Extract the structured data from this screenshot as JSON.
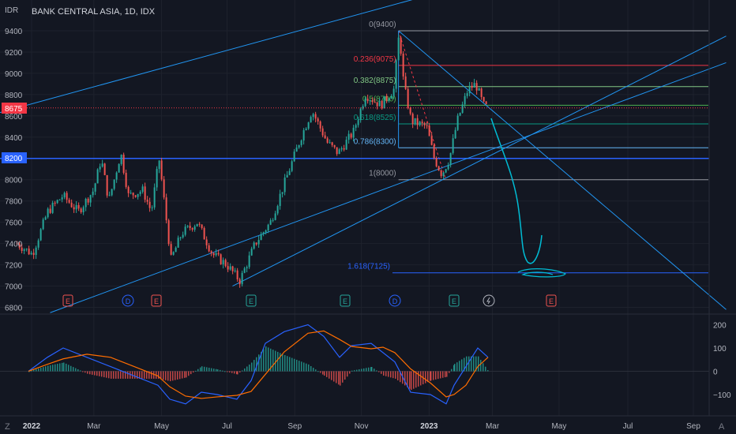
{
  "header": {
    "title": "BANK CENTRAL ASIA, 1D, IDX",
    "currency": "IDR"
  },
  "price_axis": {
    "ticks": [
      "9400",
      "9200",
      "9000",
      "8800",
      "8600",
      "8400",
      "8200",
      "8000",
      "7800",
      "7600",
      "7400",
      "7200",
      "7000",
      "6800"
    ],
    "current_price": "8675",
    "marked_price": "8200"
  },
  "macd_axis": {
    "ticks": [
      "200",
      "100",
      "0",
      "−100"
    ]
  },
  "time_axis": {
    "ticks": [
      "2022",
      "Mar",
      "May",
      "Jul",
      "Sep",
      "Nov",
      "2023",
      "Mar",
      "May",
      "Jul",
      "Sep"
    ]
  },
  "fib_levels": [
    {
      "label": "0(9400)",
      "value": 9400,
      "color": "#9598a1"
    },
    {
      "label": "0.236(9075)",
      "value": 9075,
      "color": "#f23645"
    },
    {
      "label": "0.382(8875)",
      "value": 8875,
      "color": "#81c784"
    },
    {
      "label": "0.5(8700)",
      "value": 8700,
      "color": "#4caf50"
    },
    {
      "label": "0.618(8525)",
      "value": 8525,
      "color": "#089981"
    },
    {
      "label": "0.786(8300)",
      "value": 8300,
      "color": "#64b5f6"
    },
    {
      "label": "1(8000)",
      "value": 8000,
      "color": "#9598a1"
    },
    {
      "label": "1.618(7125)",
      "value": 7125,
      "color": "#2962ff"
    }
  ],
  "event_markers": [
    {
      "letter": "E",
      "type": "earnings-negative"
    },
    {
      "letter": "D",
      "type": "dividend"
    },
    {
      "letter": "E",
      "type": "earnings-negative"
    },
    {
      "letter": "E",
      "type": "earnings-positive"
    },
    {
      "letter": "E",
      "type": "earnings-positive"
    },
    {
      "letter": "D",
      "type": "dividend"
    },
    {
      "letter": "E",
      "type": "earnings-positive"
    },
    {
      "letter": "",
      "type": "split-icon"
    },
    {
      "letter": "E",
      "type": "earnings-negative"
    }
  ],
  "footer": {
    "compare_icon": "Z",
    "auto_icon": "A"
  },
  "colors": {
    "bg": "#131722",
    "up": "#26a69a",
    "down": "#ef5350",
    "trend": "#2196f3",
    "macd": "#2962ff",
    "signal": "#ff6d00",
    "drawing": "#00bcd4"
  },
  "chart_data": {
    "type": "candlestick",
    "title": "BANK CENTRAL ASIA, 1D, IDX",
    "ylabel": "IDR",
    "ylim": [
      6800,
      9500
    ],
    "price_path": [
      [
        "2021-12-20",
        7400
      ],
      [
        "2022-01-03",
        7300
      ],
      [
        "2022-01-17",
        7700
      ],
      [
        "2022-01-31",
        7850
      ],
      [
        "2022-02-14",
        7700
      ],
      [
        "2022-02-28",
        7900
      ],
      [
        "2022-03-07",
        8200
      ],
      [
        "2022-03-14",
        7800
      ],
      [
        "2022-03-25",
        8250
      ],
      [
        "2022-04-01",
        7850
      ],
      [
        "2022-04-14",
        7900
      ],
      [
        "2022-04-22",
        7700
      ],
      [
        "2022-04-29",
        8200
      ],
      [
        "2022-05-10",
        7250
      ],
      [
        "2022-05-20",
        7500
      ],
      [
        "2022-06-03",
        7600
      ],
      [
        "2022-06-17",
        7300
      ],
      [
        "2022-06-30",
        7200
      ],
      [
        "2022-07-12",
        7050
      ],
      [
        "2022-07-26",
        7400
      ],
      [
        "2022-08-09",
        7600
      ],
      [
        "2022-08-23",
        8000
      ],
      [
        "2022-09-06",
        8400
      ],
      [
        "2022-09-16",
        8650
      ],
      [
        "2022-09-30",
        8350
      ],
      [
        "2022-10-10",
        8250
      ],
      [
        "2022-10-24",
        8450
      ],
      [
        "2022-11-04",
        8800
      ],
      [
        "2022-11-18",
        8700
      ],
      [
        "2022-11-30",
        8850
      ],
      [
        "2022-12-05",
        9400
      ],
      [
        "2022-12-09",
        8900
      ],
      [
        "2022-12-16",
        8550
      ],
      [
        "2022-12-30",
        8500
      ],
      [
        "2023-01-06",
        8200
      ],
      [
        "2023-01-13",
        8050
      ],
      [
        "2023-01-20",
        8200
      ],
      [
        "2023-01-27",
        8550
      ],
      [
        "2023-02-06",
        8850
      ],
      [
        "2023-02-13",
        8900
      ],
      [
        "2023-02-20",
        8700
      ],
      [
        "2023-02-24",
        8675
      ]
    ],
    "macd_ylim": [
      -180,
      220
    ],
    "trendlines": [
      {
        "from": [
          "2021-12-01",
          8620
        ],
        "to": [
          "2023-10-01",
          10500
        ]
      },
      {
        "from": [
          "2022-07-06",
          7000
        ],
        "to": [
          "2023-10-01",
          9350
        ]
      },
      {
        "from": [
          "2022-01-20",
          6750
        ],
        "to": [
          "2023-10-01",
          9100
        ]
      },
      {
        "from": [
          "2022-12-05",
          9400
        ],
        "to": [
          "2023-10-01",
          6780
        ]
      },
      {
        "from": [
          "2022-12-05",
          8300
        ],
        "to": [
          "2022-12-05",
          9400
        ]
      }
    ]
  }
}
